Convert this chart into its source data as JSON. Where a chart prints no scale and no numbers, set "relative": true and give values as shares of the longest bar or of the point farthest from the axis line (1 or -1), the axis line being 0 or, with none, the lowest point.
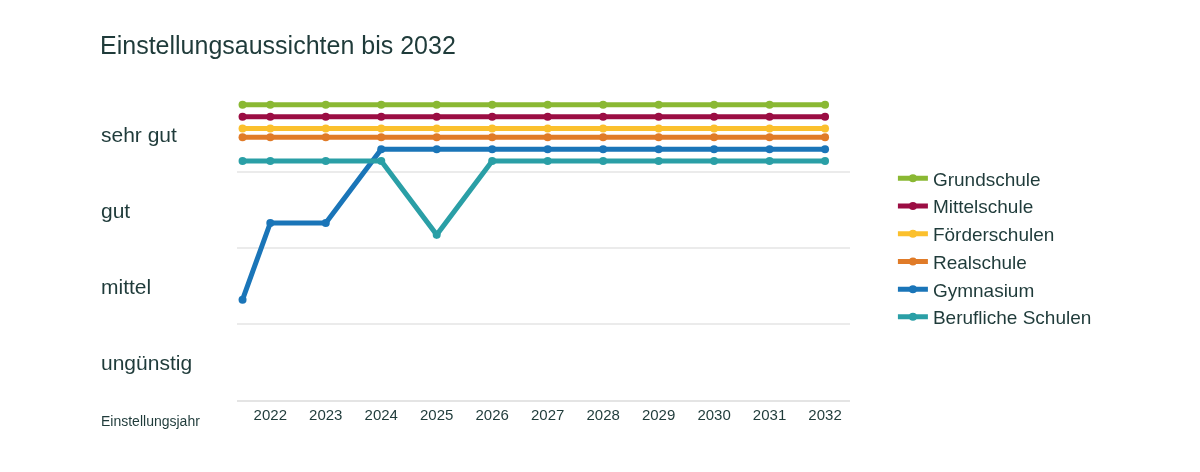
{
  "chart_data": {
    "type": "line",
    "title": "Einstellungsaussichten bis 2032",
    "xlabel": "Einstellungsjahr",
    "relative": true,
    "x": [
      2021.5,
      2022,
      2023,
      2024,
      2025,
      2026,
      2027,
      2028,
      2029,
      2030,
      2031,
      2032
    ],
    "series": [
      {
        "name": "Grundschule",
        "color": "#8ab833",
        "values": [
          1,
          1,
          1,
          1,
          1,
          1,
          1,
          1,
          1,
          1,
          1,
          1
        ]
      },
      {
        "name": "Mittelschule",
        "color": "#9b0d43",
        "values": [
          0.96,
          0.96,
          0.96,
          0.96,
          0.96,
          0.96,
          0.96,
          0.96,
          0.96,
          0.96,
          0.96,
          0.96
        ]
      },
      {
        "name": "Förderschulen",
        "color": "#fbc02d",
        "values": [
          0.92,
          0.92,
          0.92,
          0.92,
          0.92,
          0.92,
          0.92,
          0.92,
          0.92,
          0.92,
          0.92,
          0.92
        ]
      },
      {
        "name": "Realschule",
        "color": "#e07b28",
        "values": [
          0.89,
          0.89,
          0.89,
          0.89,
          0.89,
          0.89,
          0.89,
          0.89,
          0.89,
          0.89,
          0.89,
          0.89
        ]
      },
      {
        "name": "Gymnasium",
        "color": "#1a75b8",
        "values": [
          0.34,
          0.6,
          0.6,
          0.85,
          0.85,
          0.85,
          0.85,
          0.85,
          0.85,
          0.85,
          0.85,
          0.85
        ]
      },
      {
        "name": "Berufliche Schulen",
        "color": "#2a9fa6",
        "values": [
          0.81,
          0.81,
          0.81,
          0.81,
          0.56,
          0.81,
          0.81,
          0.81,
          0.81,
          0.81,
          0.81,
          0.81
        ]
      }
    ],
    "annotations": [
      "sehr gut",
      "gut",
      "mittel",
      "ungünstig"
    ],
    "xlim": [
      2021.4,
      2032.45
    ],
    "xticks": [
      2022,
      2023,
      2024,
      2025,
      2026,
      2027,
      2028,
      2029,
      2030,
      2031,
      2032
    ],
    "legend": "right",
    "marker": "circle",
    "line_style": "solid"
  }
}
